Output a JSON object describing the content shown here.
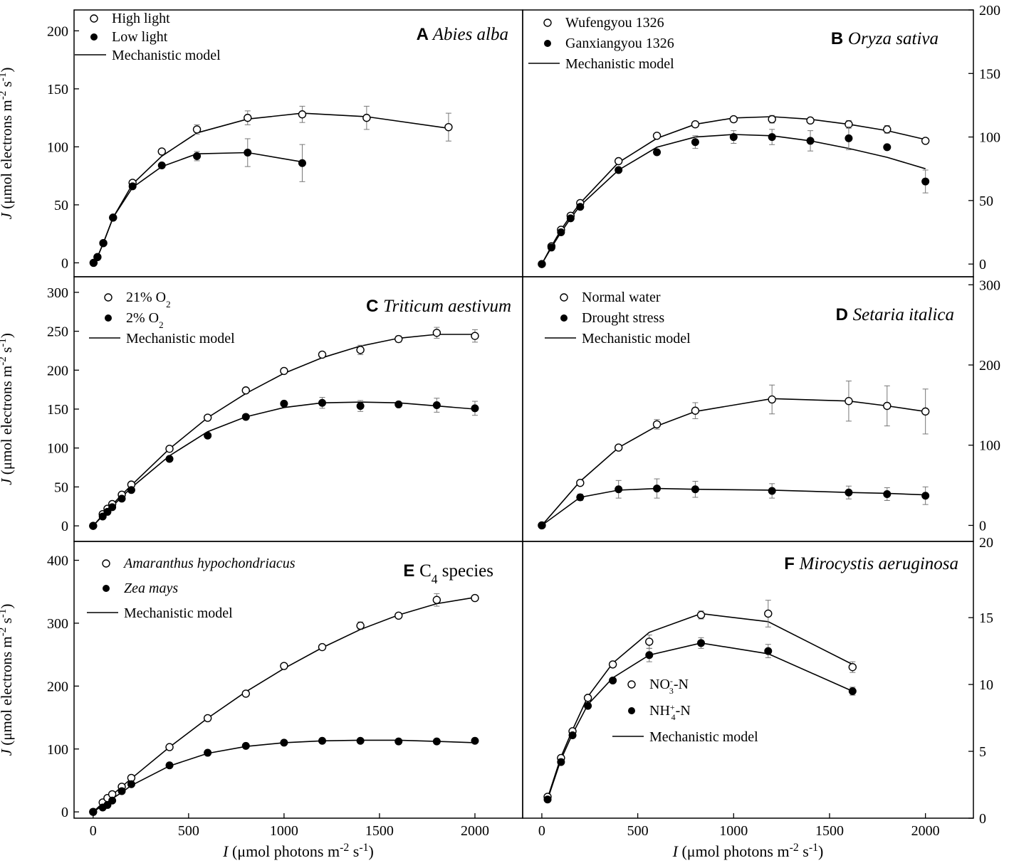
{
  "chart_data": [
    {
      "id": "A",
      "type": "scatter",
      "letter": "A",
      "title": "Abies alba",
      "title_italic": true,
      "ylabel": "J (μmol electrons m-2 s-1)",
      "xlabel": "",
      "xlim": [
        -100,
        2200
      ],
      "ylim": [
        -12,
        218
      ],
      "yticks": [
        0,
        50,
        100,
        150,
        200
      ],
      "xticks": [],
      "legend": [
        {
          "marker": "open",
          "label": "High light"
        },
        {
          "marker": "filled",
          "label": "Low light"
        },
        {
          "marker": "line",
          "label": "Mechanistic model"
        }
      ],
      "series": [
        {
          "name": "High light",
          "marker": "open",
          "x": [
            0,
            20,
            50,
            100,
            200,
            350,
            530,
            790,
            1070,
            1400,
            1820
          ],
          "y": [
            0,
            5,
            17,
            39,
            69,
            96,
            115,
            125,
            128,
            125,
            117
          ],
          "err": [
            0,
            0,
            0,
            0,
            0,
            0,
            4,
            6,
            7,
            10,
            12
          ],
          "fit_x": [
            0,
            20,
            50,
            100,
            200,
            350,
            530,
            790,
            1070,
            1400,
            1820
          ],
          "fit_y": [
            0,
            5,
            17,
            39,
            68,
            92,
            112,
            124,
            129,
            126,
            116
          ]
        },
        {
          "name": "Low light",
          "marker": "filled",
          "x": [
            0,
            20,
            50,
            100,
            200,
            350,
            530,
            790,
            1070
          ],
          "y": [
            0,
            5,
            17,
            39,
            66,
            84,
            92,
            95,
            86
          ],
          "err": [
            0,
            0,
            0,
            0,
            0,
            0,
            4,
            12,
            16
          ],
          "fit_x": [
            0,
            20,
            50,
            100,
            200,
            350,
            530,
            790,
            1070
          ],
          "fit_y": [
            0,
            5,
            17,
            39,
            65,
            83,
            94,
            95,
            87
          ]
        }
      ]
    },
    {
      "id": "B",
      "type": "scatter",
      "letter": "B",
      "title": "Oryza sativa",
      "title_italic": true,
      "ylabel": "",
      "xlabel": "",
      "xlim": [
        -100,
        2250
      ],
      "ylim": [
        -10,
        200
      ],
      "right_yticks": [
        0,
        50,
        100,
        150,
        200
      ],
      "xticks": [],
      "legend": [
        {
          "marker": "open",
          "label": "Wufengyou 1326"
        },
        {
          "marker": "filled",
          "label": "Ganxiangyou 1326"
        },
        {
          "marker": "line",
          "label": "Mechanistic model"
        }
      ],
      "series": [
        {
          "name": "Wufengyou 1326",
          "marker": "open",
          "x": [
            0,
            50,
            100,
            150,
            200,
            400,
            600,
            800,
            1000,
            1200,
            1400,
            1600,
            1800,
            2000
          ],
          "y": [
            0,
            14,
            27,
            38,
            48,
            81,
            101,
            110,
            114,
            114,
            113,
            110,
            106,
            97
          ],
          "err": [
            0,
            0,
            0,
            0,
            0,
            0,
            0,
            2,
            2,
            3,
            2,
            3,
            3,
            2
          ],
          "fit_x": [
            0,
            50,
            100,
            150,
            200,
            400,
            600,
            800,
            1000,
            1200,
            1400,
            1600,
            1800,
            2000
          ],
          "fit_y": [
            0,
            14,
            27,
            38,
            48,
            80,
            99,
            110,
            115,
            116,
            114,
            110,
            105,
            98
          ]
        },
        {
          "name": "Ganxiangyou 1326",
          "marker": "filled",
          "x": [
            0,
            50,
            100,
            150,
            200,
            400,
            600,
            800,
            1000,
            1200,
            1400,
            1600,
            1800,
            2000
          ],
          "y": [
            0,
            13,
            25,
            36,
            45,
            74,
            88,
            96,
            100,
            100,
            97,
            99,
            92,
            65
          ],
          "err": [
            0,
            0,
            0,
            0,
            0,
            0,
            0,
            5,
            5,
            6,
            8,
            9,
            0,
            9
          ],
          "fit_x": [
            0,
            50,
            100,
            150,
            200,
            400,
            600,
            800,
            1000,
            1200,
            1400,
            1600,
            1800,
            2000
          ],
          "fit_y": [
            0,
            13,
            25,
            36,
            46,
            74,
            92,
            100,
            102,
            101,
            97,
            91,
            84,
            75
          ]
        }
      ]
    },
    {
      "id": "C",
      "type": "scatter",
      "letter": "C",
      "title": "Triticum aestivum",
      "title_italic": true,
      "ylabel": "J (μmol electrons m-2 s-1)",
      "xlabel": "",
      "xlim": [
        -100,
        2250
      ],
      "ylim": [
        -20,
        320
      ],
      "yticks": [
        0,
        50,
        100,
        150,
        200,
        250,
        300
      ],
      "xticks": [],
      "legend": [
        {
          "marker": "open",
          "label": "21% O",
          "sub": "2"
        },
        {
          "marker": "filled",
          "label": "2% O",
          "sub": "2"
        },
        {
          "marker": "line",
          "label": "Mechanistic model"
        }
      ],
      "series": [
        {
          "name": "21% O2",
          "marker": "open",
          "x": [
            0,
            50,
            75,
            100,
            150,
            200,
            400,
            600,
            800,
            1000,
            1200,
            1400,
            1600,
            1800,
            2000
          ],
          "y": [
            0,
            15,
            22,
            28,
            40,
            53,
            99,
            139,
            174,
            199,
            220,
            226,
            240,
            248,
            244
          ],
          "err": [
            0,
            0,
            0,
            0,
            0,
            0,
            0,
            0,
            0,
            0,
            3,
            6,
            4,
            7,
            8
          ],
          "fit_x": [
            0,
            50,
            75,
            100,
            150,
            200,
            400,
            600,
            800,
            1000,
            1200,
            1400,
            1600,
            1800,
            2000
          ],
          "fit_y": [
            0,
            14,
            21,
            27,
            40,
            52,
            99,
            139,
            170,
            196,
            216,
            231,
            241,
            246,
            246
          ]
        },
        {
          "name": "2% O2",
          "marker": "filled",
          "x": [
            0,
            50,
            75,
            100,
            150,
            200,
            400,
            600,
            800,
            1000,
            1200,
            1400,
            1600,
            1800,
            2000
          ],
          "y": [
            0,
            12,
            18,
            24,
            35,
            46,
            86,
            116,
            140,
            157,
            158,
            154,
            156,
            155,
            151
          ],
          "err": [
            0,
            0,
            0,
            0,
            0,
            0,
            0,
            0,
            0,
            0,
            7,
            7,
            0,
            9,
            9
          ],
          "fit_x": [
            0,
            50,
            75,
            100,
            150,
            200,
            400,
            600,
            800,
            1000,
            1200,
            1400,
            1600,
            1800,
            2000
          ],
          "fit_y": [
            0,
            13,
            19,
            25,
            37,
            49,
            90,
            121,
            140,
            152,
            158,
            159,
            158,
            154,
            150
          ]
        }
      ]
    },
    {
      "id": "D",
      "type": "scatter",
      "letter": "D",
      "title": "Setaria italica",
      "title_italic": true,
      "ylabel": "",
      "xlabel": "",
      "xlim": [
        -100,
        2250
      ],
      "ylim": [
        -20,
        310
      ],
      "right_yticks": [
        0,
        100,
        200,
        300
      ],
      "right_yticks_bottom_label": "20",
      "xticks": [],
      "legend": [
        {
          "marker": "open",
          "label": "Normal water"
        },
        {
          "marker": "filled",
          "label": "Drought stress"
        },
        {
          "marker": "line",
          "label": "Mechanistic model"
        }
      ],
      "series": [
        {
          "name": "Normal water",
          "marker": "open",
          "x": [
            0,
            200,
            400,
            600,
            800,
            1200,
            1600,
            1800,
            2000
          ],
          "y": [
            0,
            53,
            97,
            126,
            143,
            157,
            155,
            149,
            142
          ],
          "err": [
            0,
            0,
            0,
            6,
            10,
            18,
            25,
            25,
            28
          ],
          "fit_x": [
            0,
            200,
            400,
            600,
            800,
            1200,
            1600,
            1800,
            2000
          ],
          "fit_y": [
            0,
            55,
            97,
            124,
            142,
            158,
            155,
            149,
            142
          ]
        },
        {
          "name": "Drought stress",
          "marker": "filled",
          "x": [
            0,
            200,
            400,
            600,
            800,
            1200,
            1600,
            1800,
            2000
          ],
          "y": [
            0,
            35,
            45,
            46,
            45,
            43,
            41,
            39,
            37
          ],
          "err": [
            0,
            4,
            11,
            12,
            10,
            9,
            8,
            8,
            11
          ],
          "fit_x": [
            0,
            200,
            400,
            600,
            800,
            1200,
            1600,
            1800,
            2000
          ],
          "fit_y": [
            0,
            35,
            44,
            46,
            45,
            44,
            41,
            40,
            38
          ]
        }
      ]
    },
    {
      "id": "E",
      "type": "scatter",
      "letter": "E",
      "title": "C",
      "title_sub": "4",
      "title_tail": " species",
      "title_italic": false,
      "ylabel": "J (μmol electrons m-2 s-1)",
      "xlabel": "I (μmol photons m-2 s-1)",
      "xlim": [
        -100,
        2250
      ],
      "ylim": [
        -10,
        430
      ],
      "yticks": [
        0,
        100,
        200,
        300,
        400
      ],
      "xticks": [
        0,
        500,
        1000,
        1500,
        2000
      ],
      "legend": [
        {
          "marker": "open",
          "label": "Amaranthus hypochondriacus",
          "italic": true
        },
        {
          "marker": "filled",
          "label": "Zea mays",
          "italic": true
        },
        {
          "marker": "line",
          "label": "Mechanistic model"
        }
      ],
      "series": [
        {
          "name": "Amaranthus hypochondriacus",
          "marker": "open",
          "x": [
            0,
            50,
            75,
            100,
            150,
            200,
            400,
            600,
            800,
            1000,
            1200,
            1400,
            1600,
            1800,
            2000
          ],
          "y": [
            0,
            15,
            22,
            28,
            40,
            54,
            103,
            149,
            188,
            232,
            262,
            296,
            312,
            337,
            340
          ],
          "err": [
            0,
            0,
            0,
            0,
            0,
            0,
            0,
            0,
            0,
            0,
            0,
            6,
            0,
            10,
            0
          ],
          "fit_x": [
            0,
            50,
            75,
            100,
            150,
            200,
            400,
            600,
            800,
            1000,
            1200,
            1400,
            1600,
            1800,
            2000
          ],
          "fit_y": [
            0,
            14,
            20,
            27,
            40,
            53,
            103,
            149,
            191,
            228,
            261,
            290,
            313,
            331,
            341
          ]
        },
        {
          "name": "Zea mays",
          "marker": "filled",
          "x": [
            0,
            50,
            75,
            100,
            150,
            200,
            400,
            600,
            800,
            1000,
            1200,
            1400,
            1600,
            1800,
            2000
          ],
          "y": [
            0,
            7,
            11,
            18,
            33,
            44,
            74,
            94,
            105,
            110,
            113,
            113,
            112,
            112,
            113
          ],
          "err": [
            0,
            0,
            0,
            0,
            0,
            0,
            0,
            0,
            0,
            0,
            0,
            0,
            0,
            0,
            0
          ],
          "fit_x": [
            0,
            50,
            75,
            100,
            150,
            200,
            400,
            600,
            800,
            1000,
            1200,
            1400,
            1600,
            1800,
            2000
          ],
          "fit_y": [
            0,
            10,
            15,
            21,
            31,
            42,
            73,
            93,
            104,
            110,
            113,
            114,
            114,
            112,
            110
          ]
        }
      ]
    },
    {
      "id": "F",
      "type": "scatter",
      "letter": "F",
      "title": "Mirocystis aeruginosa",
      "title_italic": true,
      "ylabel": "",
      "xlabel": "I (μmol photons m-2 s-1)",
      "xlim": [
        -100,
        2250
      ],
      "ylim": [
        0,
        20.7
      ],
      "right_yticks": [
        0,
        5,
        10,
        15
      ],
      "xticks": [
        0,
        500,
        1000,
        1500,
        2000
      ],
      "legend": [
        {
          "marker": "open",
          "label": "NO",
          "sub": "3",
          "sup": "-",
          "tail": "-N"
        },
        {
          "marker": "filled",
          "label": "NH",
          "sub": "4",
          "sup": "+",
          "tail": "-N"
        },
        {
          "marker": "line",
          "label": "Mechanistic model"
        }
      ],
      "series": [
        {
          "name": "NO3-N",
          "marker": "open",
          "x": [
            30,
            100,
            160,
            240,
            370,
            560,
            830,
            1180,
            1620
          ],
          "y": [
            1.6,
            4.5,
            6.5,
            9.0,
            11.5,
            13.2,
            15.2,
            15.3,
            11.3
          ],
          "err": [
            0,
            0,
            0,
            0,
            0,
            0.5,
            0.3,
            1.0,
            0.4
          ],
          "fit_x": [
            30,
            100,
            160,
            240,
            370,
            560,
            830,
            1180,
            1620
          ],
          "fit_y": [
            1.5,
            4.6,
            6.6,
            9.1,
            11.6,
            13.9,
            15.3,
            14.7,
            11.5
          ]
        },
        {
          "name": "NH4-N",
          "marker": "filled",
          "x": [
            30,
            100,
            160,
            240,
            370,
            560,
            830,
            1180,
            1620
          ],
          "y": [
            1.4,
            4.2,
            6.2,
            8.4,
            10.3,
            12.2,
            13.1,
            12.5,
            9.5
          ],
          "err": [
            0,
            0,
            0,
            0,
            0,
            0.5,
            0.4,
            0.5,
            0.3
          ],
          "fit_x": [
            30,
            100,
            160,
            240,
            370,
            560,
            830,
            1180,
            1620
          ],
          "fit_y": [
            1.4,
            4.4,
            6.3,
            8.5,
            10.5,
            12.2,
            13.1,
            12.3,
            9.5
          ]
        }
      ]
    }
  ]
}
